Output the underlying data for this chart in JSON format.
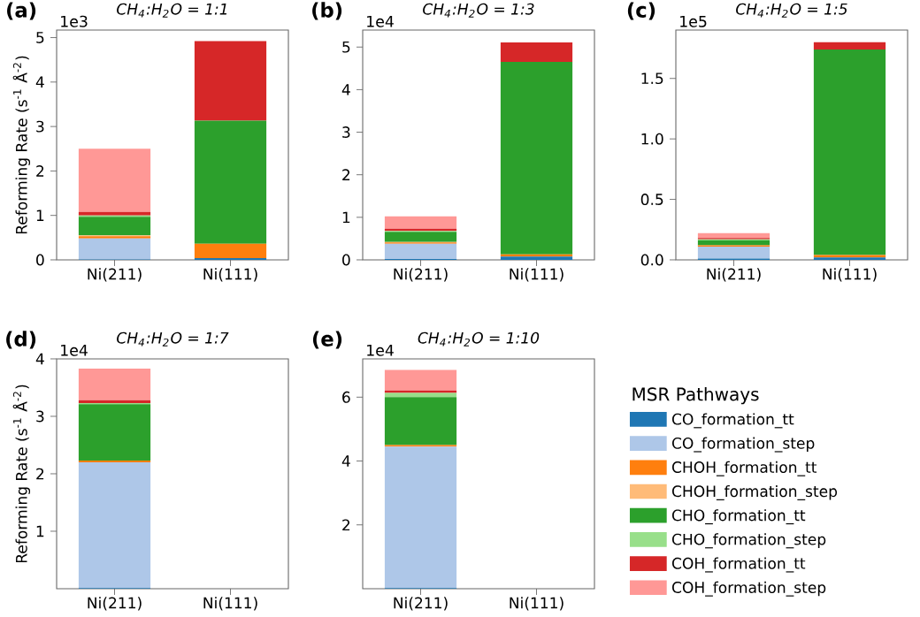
{
  "chart_data": [
    {
      "type": "bar",
      "stacked": true,
      "title": "CH$_{4}$:H$_{2}$O = 1:1",
      "ylabel": "Reforming Rate (s$^{-1}$ Å$^{-2}$)",
      "annotations": [
        "(a)",
        "1e3"
      ],
      "categories": [
        "Ni(211)",
        "Ni(111)"
      ],
      "ylim": [
        0,
        5.17
      ],
      "yticks": [
        0,
        1,
        2,
        3,
        4,
        5
      ],
      "series": [
        {
          "color": "#1f77b4",
          "values": [
            0.01,
            0.04
          ]
        },
        {
          "color": "#aec7e8",
          "values": [
            0.47,
            0
          ]
        },
        {
          "color": "#ff7f0e",
          "values": [
            0.05,
            0.32
          ]
        },
        {
          "color": "#ffbb78",
          "values": [
            0.02,
            0
          ]
        },
        {
          "color": "#2ca02c",
          "values": [
            0.42,
            2.77
          ]
        },
        {
          "color": "#98df8a",
          "values": [
            0.03,
            0
          ]
        },
        {
          "color": "#d62728",
          "values": [
            0.08,
            1.79
          ]
        },
        {
          "color": "#ff9896",
          "values": [
            1.42,
            0
          ]
        }
      ]
    },
    {
      "type": "bar",
      "stacked": true,
      "title": "CH$_{4}$:H$_{2}$O = 1:3",
      "annotations": [
        "(b)",
        "1e4"
      ],
      "categories": [
        "Ni(211)",
        "Ni(111)"
      ],
      "ylim": [
        0,
        5.4
      ],
      "yticks": [
        0,
        1,
        2,
        3,
        4,
        5
      ],
      "series": [
        {
          "color": "#1f77b4",
          "values": [
            0.02,
            0.08
          ]
        },
        {
          "color": "#aec7e8",
          "values": [
            0.36,
            null
          ]
        },
        {
          "color": "#ff7f0e",
          "values": [
            0.03,
            0.05
          ]
        },
        {
          "color": "#ffbb78",
          "values": [
            0.01,
            0
          ]
        },
        {
          "color": "#2ca02c",
          "values": [
            0.24,
            4.52
          ]
        },
        {
          "color": "#98df8a",
          "values": [
            0.02,
            null
          ]
        },
        {
          "color": "#d62728",
          "values": [
            0.05,
            0.46
          ]
        },
        {
          "color": "#ff9896",
          "values": [
            0.29,
            0
          ]
        }
      ]
    },
    {
      "type": "bar",
      "stacked": true,
      "title": "CH$_{4}$:H$_{2}$O = 1:5",
      "annotations": [
        "(c)",
        "1e5"
      ],
      "categories": [
        "Ni(211)",
        "Ni(111)"
      ],
      "ylim": [
        0,
        1.9
      ],
      "yticks": [
        {
          "value": 0,
          "label": "0.0"
        },
        0.5,
        {
          "value": 1,
          "label": "1.0"
        },
        1.5
      ],
      "series": [
        {
          "color": "#1f77b4",
          "values": [
            0.01,
            0.02
          ]
        },
        {
          "color": "#aec7e8",
          "values": [
            0.1,
            null
          ]
        },
        {
          "color": "#ff7f0e",
          "values": [
            0.01,
            0.02
          ]
        },
        {
          "color": "#ffbb78",
          "values": [
            0,
            0
          ]
        },
        {
          "color": "#2ca02c",
          "values": [
            0.04,
            1.7
          ]
        },
        {
          "color": "#98df8a",
          "values": [
            0.01,
            0
          ]
        },
        {
          "color": "#d62728",
          "values": [
            0.01,
            0.06
          ]
        },
        {
          "color": "#ff9896",
          "values": [
            0.04,
            0
          ]
        }
      ]
    },
    {
      "type": "bar",
      "stacked": true,
      "title": "CH$_{4}$:H$_{2}$O = 1:7",
      "ylabel": "Reforming Rate (s$^{-1}$ Å$^{-2}$)",
      "annotations": [
        "(d)",
        "1e4"
      ],
      "categories": [
        "Ni(211)",
        "Ni(111)"
      ],
      "ylim": [
        0,
        4
      ],
      "yticks": [
        1,
        2,
        3,
        4
      ],
      "series": [
        {
          "color": "#1f77b4",
          "values": [
            0.01,
            null
          ]
        },
        {
          "color": "#aec7e8",
          "values": [
            2.19,
            null
          ]
        },
        {
          "color": "#ff7f0e",
          "values": [
            0.03,
            null
          ]
        },
        {
          "color": "#ffbb78",
          "values": [
            0,
            null
          ]
        },
        {
          "color": "#2ca02c",
          "values": [
            0.98,
            null
          ]
        },
        {
          "color": "#98df8a",
          "values": [
            0.02,
            null
          ]
        },
        {
          "color": "#d62728",
          "values": [
            0.05,
            null
          ]
        },
        {
          "color": "#ff9896",
          "values": [
            0.55,
            null
          ]
        }
      ]
    },
    {
      "type": "bar",
      "stacked": true,
      "title": "CH$_{4}$:H$_{2}$O = 1:10",
      "annotations": [
        "(e)",
        "1e4"
      ],
      "categories": [
        "Ni(211)",
        "Ni(111)"
      ],
      "ylim": [
        0,
        7.2
      ],
      "yticks": [
        2,
        4,
        6
      ],
      "legend": "right",
      "legend_title": "MSR Pathways",
      "series": [
        {
          "name": "CO_formation_tt",
          "color": "#1f77b4",
          "values": [
            0.02,
            null
          ]
        },
        {
          "name": "CO_formation_step",
          "color": "#aec7e8",
          "values": [
            4.43,
            null
          ]
        },
        {
          "name": "CHOH_formation_tt",
          "color": "#ff7f0e",
          "values": [
            0.05,
            null
          ]
        },
        {
          "name": "CHOH_formation_step",
          "color": "#ffbb78",
          "values": [
            0,
            null
          ]
        },
        {
          "name": "CHO_formation_tt",
          "color": "#2ca02c",
          "values": [
            1.5,
            null
          ]
        },
        {
          "name": "CHO_formation_step",
          "color": "#98df8a",
          "values": [
            0.13,
            null
          ]
        },
        {
          "name": "COH_formation_tt",
          "color": "#d62728",
          "values": [
            0.08,
            null
          ]
        },
        {
          "name": "COH_formation_step",
          "color": "#ff9896",
          "values": [
            0.64,
            null
          ]
        }
      ]
    }
  ]
}
